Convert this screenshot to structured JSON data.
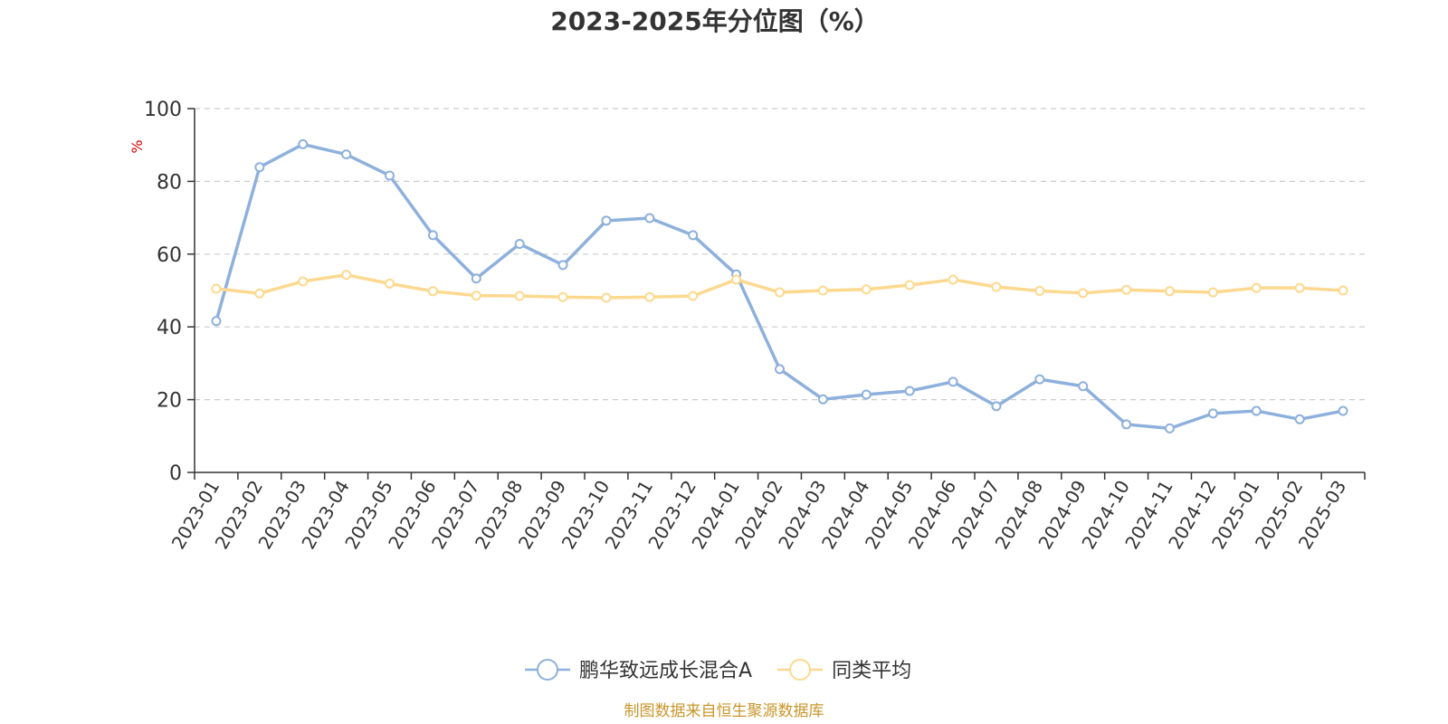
{
  "chart_data": {
    "type": "line",
    "title": "2023-2025年分位图（%）",
    "ylabel": "%",
    "ylim": [
      0,
      100
    ],
    "yticks": [
      0,
      20,
      40,
      60,
      80,
      100
    ],
    "grid": true,
    "legend_position": "bottom-center",
    "categories": [
      "2023-01",
      "2023-02",
      "2023-03",
      "2023-04",
      "2023-05",
      "2023-06",
      "2023-07",
      "2023-08",
      "2023-09",
      "2023-10",
      "2023-11",
      "2023-12",
      "2024-01",
      "2024-02",
      "2024-03",
      "2024-04",
      "2024-05",
      "2024-06",
      "2024-07",
      "2024-08",
      "2024-09",
      "2024-10",
      "2024-11",
      "2024-12",
      "2025-01",
      "2025-02",
      "2025-03"
    ],
    "series": [
      {
        "name": "鹏华致远成长混合A",
        "color": "#8eb0dc",
        "values": [
          41.6,
          83.9,
          90.2,
          87.4,
          81.6,
          65.2,
          53.3,
          62.8,
          57.0,
          69.2,
          69.9,
          65.2,
          54.4,
          28.4,
          20.1,
          21.4,
          22.4,
          24.9,
          18.2,
          25.6,
          23.7,
          13.2,
          12.1,
          16.2,
          16.9,
          14.6,
          16.9
        ]
      },
      {
        "name": "同类平均",
        "color": "#fcd98f",
        "values": [
          50.5,
          49.2,
          52.5,
          54.3,
          51.9,
          49.8,
          48.6,
          48.5,
          48.2,
          48.0,
          48.2,
          48.5,
          53.0,
          49.5,
          50.0,
          50.3,
          51.5,
          53.0,
          51.0,
          49.9,
          49.3,
          50.2,
          49.8,
          49.5,
          50.7,
          50.7,
          50.0
        ]
      }
    ]
  },
  "source_note": "制图数据来自恒生聚源数据库"
}
